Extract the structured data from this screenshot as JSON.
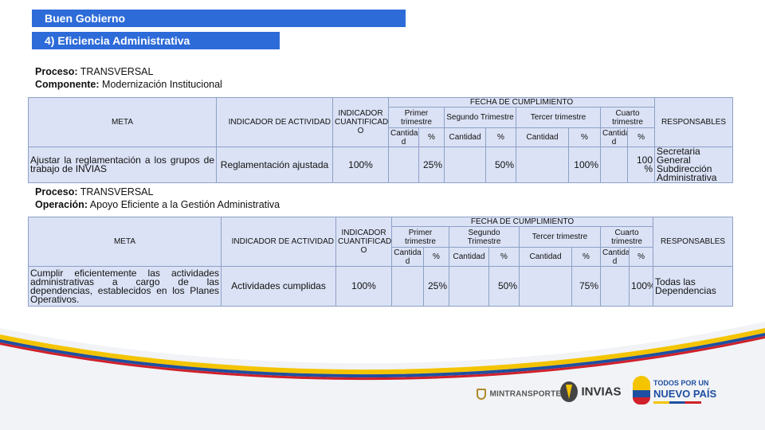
{
  "header": {
    "title": "Buen Gobierno",
    "subtitle": "4) Eficiencia Administrativa"
  },
  "section1": {
    "proceso_label": "Proceso:",
    "proceso_value": "TRANSVERSAL",
    "componente_label": "Componente:",
    "componente_value": "Modernización Institucional",
    "table": {
      "head": {
        "meta": "META",
        "indicador_actividad": "INDICADOR DE ACTIVIDAD",
        "indicador_cuantificado": "INDICADOR CUANTIFICAD O",
        "fecha": "FECHA DE CUMPLIMIENTO",
        "primer": "Primer trimestre",
        "segundo": "Segundo Trimestre",
        "tercer": "Tercer trimestre",
        "cuarto": "Cuarto trimestre",
        "responsables": "RESPONSABLES",
        "cantidad_short": "Cantida d",
        "cantidad": "Cantidad",
        "pct": "%"
      },
      "row": {
        "meta": "Ajustar la reglamentación a los grupos de trabajo de INVIAS",
        "indicador": "Reglamentación ajustada",
        "cuantificado": "100%",
        "q1_pct": "25%",
        "q2_pct": "50%",
        "q3_pct": "100%",
        "q4_pct": "100 %",
        "responsables": "Secretaria General Subdirección Administrativa"
      }
    }
  },
  "section2": {
    "proceso_label": "Proceso:",
    "proceso_value": "TRANSVERSAL",
    "operacion_label": "Operación:",
    "operacion_value": "Apoyo Eficiente a la Gestión Administrativa",
    "table": {
      "head": {
        "meta": "META",
        "indicador_actividad": "INDICADOR DE ACTIVIDAD",
        "indicador_cuantificado": "INDICADOR CUANTIFICAD O",
        "fecha": "FECHA DE CUMPLIMIENTO",
        "primer": "Primer trimestre",
        "segundo": "Segundo Trimestre",
        "tercer": "Tercer trimestre",
        "cuarto": "Cuarto trimestre",
        "responsables": "RESPONSABLES",
        "cantidad_short": "Cantida d",
        "cantidad": "Cantidad",
        "pct": "%"
      },
      "row": {
        "meta": "Cumplir eficientemente las actividades administrativas a cargo de las dependencias, establecidos en los Planes Operativos.",
        "indicador": "Actividades cumplidas",
        "cuantificado": "100%",
        "q1_pct": "25%",
        "q2_pct": "50%",
        "q3_pct": "75%",
        "q4_pct": "100%",
        "responsables": "Todas las Dependencias"
      }
    }
  },
  "footer": {
    "logo1": "MINTRANSPORTE",
    "logo2": "INVIAS",
    "logo3_line1": "TODOS POR UN",
    "logo3_line2": "NUEVO PAÍS"
  },
  "colors": {
    "bar": "#2d6bd8",
    "cell": "#dbe2f5",
    "flag_yellow": "#f4c400",
    "flag_blue": "#1f4fa0",
    "flag_red": "#d0202a"
  }
}
